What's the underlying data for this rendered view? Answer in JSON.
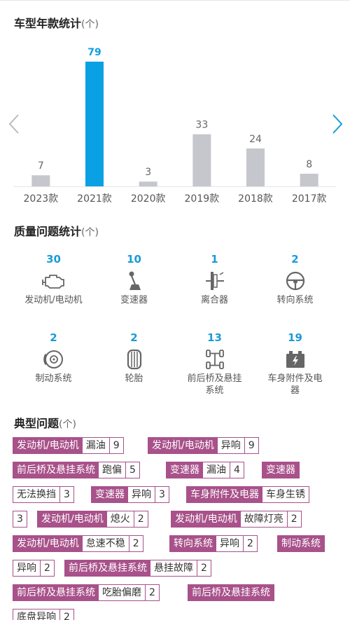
{
  "model_year": {
    "title": "车型年款统计",
    "unit": "(个)",
    "chart_data": {
      "type": "bar",
      "categories": [
        "2023款",
        "2021款",
        "2020款",
        "2019款",
        "2018款",
        "2017款"
      ],
      "values": [
        7,
        79,
        3,
        33,
        24,
        8
      ],
      "highlight_index": 1,
      "colors": {
        "default": "#c5c7cd",
        "highlight": "#0aa0e4",
        "label_highlight": "#0aa0e4",
        "label_default": "#666666"
      }
    }
  },
  "nav": {
    "prev_icon": "chevron-left-icon",
    "next_icon": "chevron-right-icon"
  },
  "quality": {
    "title": "质量问题统计",
    "unit": "(个)",
    "items": [
      {
        "count": "30",
        "label": "发动机/电动机",
        "icon": "engine-icon"
      },
      {
        "count": "10",
        "label": "变速器",
        "icon": "gear-shift-icon"
      },
      {
        "count": "1",
        "label": "离合器",
        "icon": "clutch-icon"
      },
      {
        "count": "2",
        "label": "转向系统",
        "icon": "steering-wheel-icon"
      },
      {
        "count": "2",
        "label": "制动系统",
        "icon": "brake-disc-icon"
      },
      {
        "count": "2",
        "label": "轮胎",
        "icon": "tire-icon"
      },
      {
        "count": "13",
        "label": "前后桥及悬挂\n系统",
        "icon": "axle-icon"
      },
      {
        "count": "19",
        "label": "车身附件及电\n器",
        "icon": "battery-icon"
      }
    ]
  },
  "typical": {
    "title": "典型问题",
    "unit": "(个)",
    "tags": [
      {
        "system": "发动机/电动机",
        "symptom": "漏油",
        "count": "9"
      },
      {
        "system": "发动机/电动机",
        "symptom": "异响",
        "count": "9"
      },
      {
        "system": "前后桥及悬挂系统",
        "symptom": "跑偏",
        "count": "5"
      },
      {
        "system": "变速器",
        "symptom": "漏油",
        "count": "4"
      },
      {
        "system": "变速器",
        "symptom": "",
        "count": ""
      },
      {
        "system": "",
        "symptom": "无法换挡",
        "count": "3"
      },
      {
        "system": "变速器",
        "symptom": "异响",
        "count": "3"
      },
      {
        "system": "车身附件及电器",
        "symptom": "车身生锈",
        "count": ""
      },
      {
        "system": "",
        "symptom": "",
        "count": "3"
      },
      {
        "system": "发动机/电动机",
        "symptom": "熄火",
        "count": "2"
      },
      {
        "system": "发动机/电动机",
        "symptom": "故障灯亮",
        "count": "2"
      },
      {
        "system": "发动机/电动机",
        "symptom": "怠速不稳",
        "count": "2"
      },
      {
        "system": "转向系统",
        "symptom": "异响",
        "count": "2"
      },
      {
        "system": "制动系统",
        "symptom": "",
        "count": ""
      },
      {
        "system": "",
        "symptom": "异响",
        "count": "2"
      },
      {
        "system": "前后桥及悬挂系统",
        "symptom": "悬挂故障",
        "count": "2"
      },
      {
        "system": "前后桥及悬挂系统",
        "symptom": "吃胎偏磨",
        "count": "2"
      },
      {
        "system": "前后桥及悬挂系统",
        "symptom": "",
        "count": ""
      },
      {
        "system": "",
        "symptom": "底盘异响",
        "count": "2"
      }
    ]
  }
}
